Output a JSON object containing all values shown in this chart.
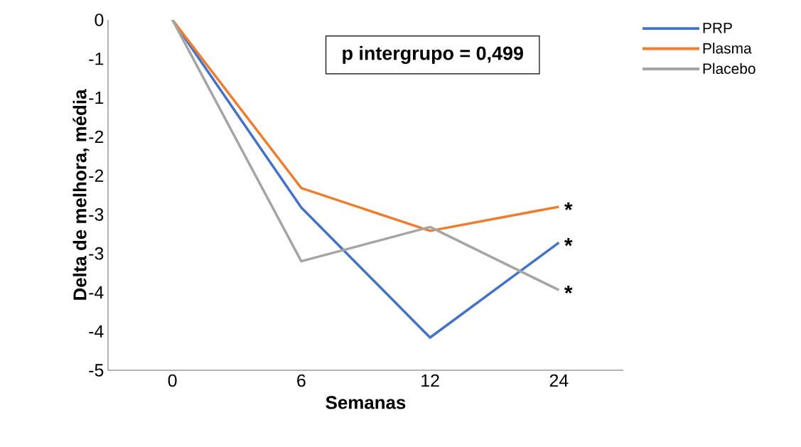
{
  "chart_data": {
    "type": "line",
    "xlabel": "Semanas",
    "ylabel": "Delta de melhora, média",
    "categories": [
      "0",
      "6",
      "12",
      "24"
    ],
    "series": [
      {
        "name": "PRP",
        "color": "#4472c4",
        "values": [
          0,
          -2.41,
          -4.08,
          -2.86
        ]
      },
      {
        "name": "Plasma",
        "color": "#ed7d31",
        "values": [
          0,
          -2.16,
          -2.71,
          -2.4
        ]
      },
      {
        "name": "Placebo",
        "color": "#a5a5a5",
        "values": [
          0,
          -3.1,
          -2.66,
          -3.47
        ]
      }
    ],
    "ylim": [
      -4.5,
      0
    ],
    "yticks": [
      0,
      {
        "value": -0.5,
        "label": "-1"
      },
      -1,
      {
        "value": -1.5,
        "label": "-2"
      },
      -2,
      {
        "value": -2.5,
        "label": "-3"
      },
      -3,
      {
        "value": -3.5,
        "label": "-4"
      },
      -4,
      {
        "value": -4.5,
        "label": "-5"
      }
    ],
    "grid": false,
    "legend": "right",
    "marker": "none",
    "line_style": "solid",
    "annotations": [
      "p intergrupo = 0,499",
      {
        "text": "*",
        "x": "24",
        "y": -2.4
      },
      {
        "text": "*",
        "x": "24",
        "y": -2.86
      },
      {
        "text": "*",
        "x": "24",
        "y": -3.47
      }
    ]
  }
}
